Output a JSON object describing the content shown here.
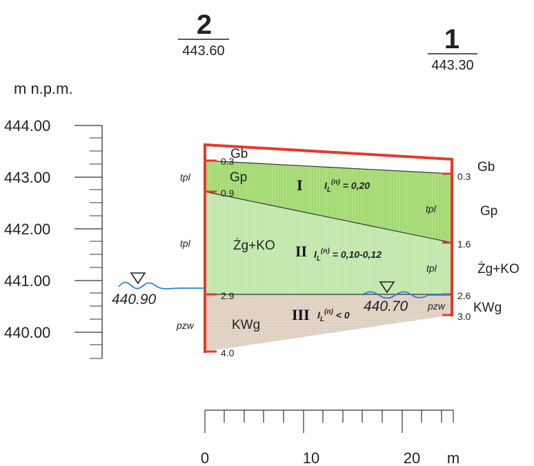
{
  "boreholes": [
    {
      "id": "2",
      "elevation": "443.60"
    },
    {
      "id": "1",
      "elevation": "443.30"
    }
  ],
  "vertical_axis": {
    "unit": "m n.p.m.",
    "ticks": [
      "444.00",
      "443.00",
      "442.00",
      "441.00",
      "440.00"
    ]
  },
  "horizontal_scale": {
    "ticks": [
      "0",
      "10",
      "20"
    ],
    "unit": "m"
  },
  "left_column": {
    "depths": [
      "0.3",
      "0.9",
      "2.9",
      "4.0"
    ],
    "soils": [
      "Gb",
      "Gp",
      "Żg+KO",
      "KWg"
    ],
    "states": [
      "tpl",
      "tpl",
      "pzw"
    ]
  },
  "right_column": {
    "depths": [
      "0.3",
      "1.6",
      "2.6",
      "3.0"
    ],
    "soils": [
      "Gb",
      "Gp",
      "Żg+KO",
      "KWg"
    ],
    "states": [
      "tpl",
      "tpl",
      "pzw"
    ]
  },
  "layers": [
    {
      "roman": "I",
      "il_label": "I",
      "il_sup": "(n)",
      "il_value": "= 0,20"
    },
    {
      "roman": "II",
      "il_label": "I",
      "il_sup": "(n)",
      "il_value": "= 0,10-0,12"
    },
    {
      "roman": "III",
      "il_label": "I",
      "il_sup": "(n)",
      "il_value": "< 0"
    }
  ],
  "water_levels": {
    "left": "440.90",
    "right": "440.70"
  },
  "colors": {
    "column": "#e33a2d",
    "layer_green_dark": "#aee07c",
    "layer_green_light": "#c8ebb4",
    "layer_sand": "#e3d6c8",
    "water": "#2f7fd6"
  }
}
